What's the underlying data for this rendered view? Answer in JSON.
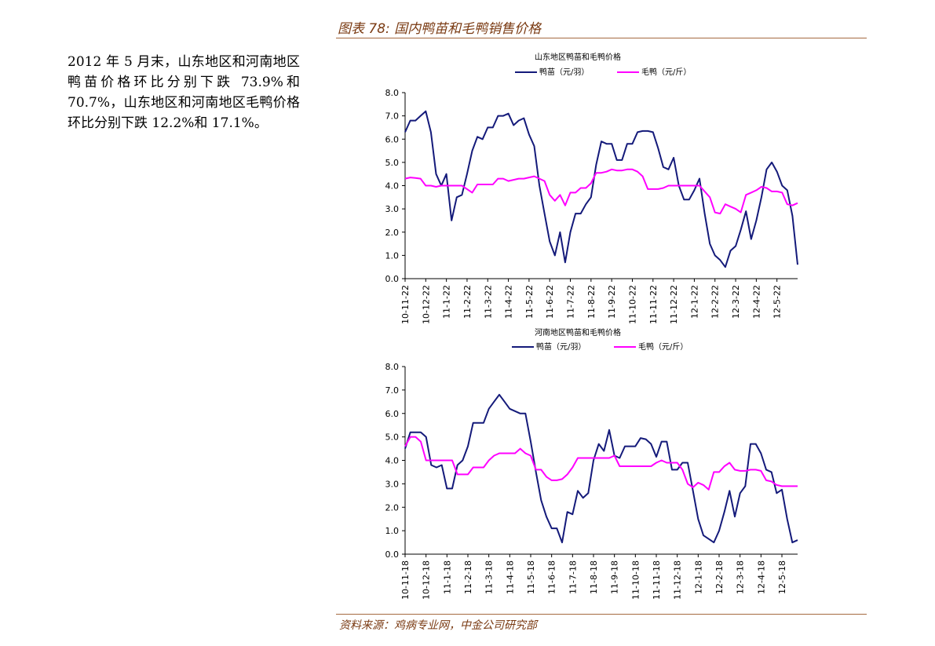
{
  "figure_title": "图表 78: 国内鸭苗和毛鸭销售价格",
  "side_text": "2012 年 5 月末，山东地区和河南地区鸭苗价格环比分别下跌 73.9%和 70.7%，山东地区和河南地区毛鸭价格环比分别下跌 12.2%和 17.1%。",
  "source": "资料来源：鸡病专业网，中金公司研究部",
  "colors": {
    "duckling": "#141a7a",
    "meat_duck": "#ff00ff",
    "title_brown": "#7a3a12",
    "rule": "#a56a40"
  },
  "chart_data": [
    {
      "type": "line",
      "title": "山东地区鸭苗和毛鸭价格",
      "legend_position": "top",
      "ylim": [
        0,
        8
      ],
      "yticks": [
        "0.0",
        "1.0",
        "2.0",
        "3.0",
        "4.0",
        "5.0",
        "6.0",
        "7.0",
        "8.0"
      ],
      "xtick_labels": [
        "10-11-22",
        "10-12-22",
        "11-1-22",
        "11-2-22",
        "11-3-22",
        "11-4-22",
        "11-5-22",
        "11-6-22",
        "11-7-22",
        "11-8-22",
        "11-9-22",
        "11-10-22",
        "11-11-22",
        "11-12-22",
        "12-1-22",
        "12-2-22",
        "12-3-22",
        "12-4-22",
        "12-5-22"
      ],
      "xtick_positions": [
        0,
        4,
        8,
        12,
        16,
        20,
        24,
        28,
        32,
        36,
        40,
        44,
        48,
        52,
        56,
        60,
        64,
        68,
        72
      ],
      "x_count": 77,
      "series": [
        {
          "name": "鸭苗（元/羽）",
          "values": [
            6.3,
            6.8,
            6.8,
            7.0,
            7.2,
            6.3,
            4.5,
            4.0,
            4.5,
            2.5,
            3.5,
            3.6,
            4.5,
            5.5,
            6.1,
            6.0,
            6.5,
            6.5,
            7.0,
            7.0,
            7.1,
            6.6,
            6.8,
            6.9,
            6.2,
            5.7,
            4.0,
            2.8,
            1.6,
            1.0,
            2.0,
            0.7,
            2.0,
            2.8,
            2.8,
            3.2,
            3.5,
            4.9,
            5.9,
            5.8,
            5.8,
            5.1,
            5.1,
            5.8,
            5.8,
            6.3,
            6.35,
            6.35,
            6.3,
            5.6,
            4.8,
            4.7,
            5.2,
            4.0,
            3.4,
            3.4,
            3.8,
            4.3,
            2.8,
            1.5,
            1.0,
            0.8,
            0.5,
            1.2,
            1.4,
            2.1,
            2.9,
            1.7,
            2.5,
            3.5,
            4.7,
            5.0,
            4.6,
            4.0,
            3.8,
            2.7,
            0.6
          ]
        },
        {
          "name": "毛鸭（元/斤）",
          "values": [
            4.3,
            4.35,
            4.33,
            4.3,
            4.0,
            4.0,
            3.95,
            4.0,
            4.0,
            4.0,
            4.0,
            4.0,
            3.85,
            3.7,
            4.05,
            4.05,
            4.05,
            4.05,
            4.3,
            4.3,
            4.2,
            4.25,
            4.3,
            4.3,
            4.35,
            4.4,
            4.3,
            4.2,
            3.6,
            3.35,
            3.6,
            3.15,
            3.7,
            3.7,
            3.9,
            3.9,
            4.1,
            4.55,
            4.55,
            4.6,
            4.7,
            4.65,
            4.65,
            4.7,
            4.7,
            4.6,
            4.4,
            3.85,
            3.85,
            3.85,
            3.9,
            4.0,
            4.0,
            4.0,
            4.0,
            4.0,
            4.0,
            4.0,
            3.75,
            3.5,
            2.85,
            2.8,
            3.2,
            3.1,
            3.0,
            2.85,
            3.6,
            3.7,
            3.8,
            3.95,
            3.9,
            3.75,
            3.75,
            3.7,
            3.2,
            3.15,
            3.25
          ]
        }
      ]
    },
    {
      "type": "line",
      "title": "河南地区鸭苗和毛鸭价格",
      "legend_position": "top",
      "ylim": [
        0,
        8
      ],
      "yticks": [
        "0.0",
        "1.0",
        "2.0",
        "3.0",
        "4.0",
        "5.0",
        "6.0",
        "7.0",
        "8.0"
      ],
      "xtick_labels": [
        "10-11-18",
        "10-12-18",
        "11-1-18",
        "11-2-18",
        "11-3-18",
        "11-4-18",
        "11-5-18",
        "11-6-18",
        "11-7-18",
        "11-8-18",
        "11-9-18",
        "11-10-18",
        "11-11-18",
        "11-12-18",
        "12-1-18",
        "12-2-18",
        "12-3-18",
        "12-4-18",
        "12-5-18"
      ],
      "xtick_positions": [
        0,
        4,
        8,
        12,
        16,
        20,
        24,
        28,
        32,
        36,
        40,
        44,
        48,
        52,
        56,
        60,
        64,
        68,
        72
      ],
      "x_count": 76,
      "series": [
        {
          "name": "鸭苗（元/羽）",
          "values": [
            4.5,
            5.2,
            5.2,
            5.2,
            5.0,
            3.8,
            3.7,
            3.8,
            2.8,
            2.8,
            3.8,
            4.0,
            4.6,
            5.6,
            5.6,
            5.6,
            6.2,
            6.5,
            6.8,
            6.5,
            6.2,
            6.1,
            6.0,
            6.0,
            4.8,
            3.5,
            2.3,
            1.6,
            1.1,
            1.1,
            0.5,
            1.8,
            1.7,
            2.7,
            2.4,
            2.6,
            4.0,
            4.7,
            4.4,
            5.3,
            4.2,
            4.1,
            4.6,
            4.6,
            4.6,
            4.95,
            4.9,
            4.7,
            4.15,
            4.8,
            4.8,
            3.6,
            3.6,
            3.9,
            3.9,
            2.7,
            1.5,
            0.8,
            0.65,
            0.5,
            1.0,
            1.8,
            2.7,
            1.6,
            2.6,
            2.9,
            4.7,
            4.7,
            4.3,
            3.6,
            3.5,
            2.6,
            2.75,
            1.5,
            0.5,
            0.6
          ]
        },
        {
          "name": "毛鸭（元/斤）",
          "values": [
            4.6,
            5.0,
            5.0,
            4.8,
            4.0,
            4.0,
            4.0,
            4.0,
            4.0,
            4.0,
            3.4,
            3.4,
            3.4,
            3.7,
            3.7,
            3.7,
            4.0,
            4.2,
            4.3,
            4.3,
            4.3,
            4.3,
            4.5,
            4.3,
            4.2,
            3.6,
            3.6,
            3.3,
            3.15,
            3.15,
            3.2,
            3.4,
            3.7,
            4.1,
            4.1,
            4.1,
            4.1,
            4.1,
            4.1,
            4.1,
            4.2,
            3.75,
            3.75,
            3.75,
            3.75,
            3.75,
            3.75,
            3.75,
            3.9,
            4.0,
            3.9,
            3.9,
            3.9,
            3.6,
            3.0,
            2.85,
            3.05,
            2.95,
            2.75,
            3.5,
            3.5,
            3.75,
            3.9,
            3.6,
            3.55,
            3.55,
            3.6,
            3.6,
            3.55,
            3.15,
            3.1,
            2.95,
            2.9,
            2.9,
            2.9,
            2.9
          ]
        }
      ]
    }
  ]
}
